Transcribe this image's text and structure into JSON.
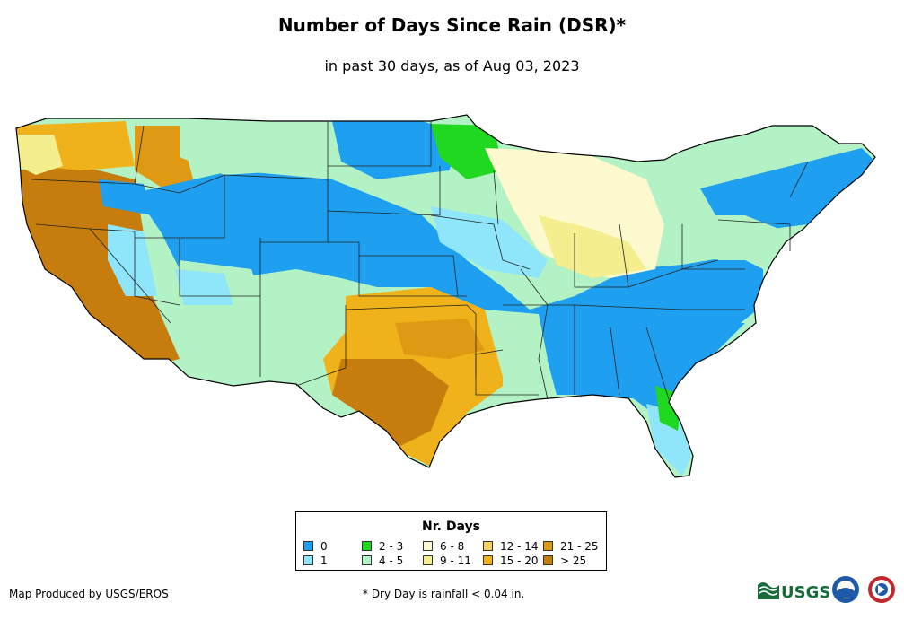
{
  "header": {
    "title": "Number of Days Since Rain (DSR)*",
    "subtitle": "in past 30 days, as of Aug 03, 2023"
  },
  "legend": {
    "title": "Nr. Days",
    "items": [
      {
        "label": "0",
        "color": "#1f9fef"
      },
      {
        "label": "1",
        "color": "#8fe5f9"
      },
      {
        "label": "2 - 3",
        "color": "#1fd81f"
      },
      {
        "label": "4 - 5",
        "color": "#b2f2c4"
      },
      {
        "label": "6 - 8",
        "color": "#fbf9cd"
      },
      {
        "label": "9 - 11",
        "color": "#f5ee8e"
      },
      {
        "label": "12 - 14",
        "color": "#f3d061"
      },
      {
        "label": "15 - 20",
        "color": "#f0b21b"
      },
      {
        "label": "21 - 25",
        "color": "#e09913"
      },
      {
        "label": "> 25",
        "color": "#c77d0d"
      }
    ]
  },
  "footer": {
    "credit": "Map Produced by USGS/EROS",
    "note": "* Dry Day is rainfall < 0.04 in."
  },
  "logos": {
    "usgs_text": "USGS"
  }
}
